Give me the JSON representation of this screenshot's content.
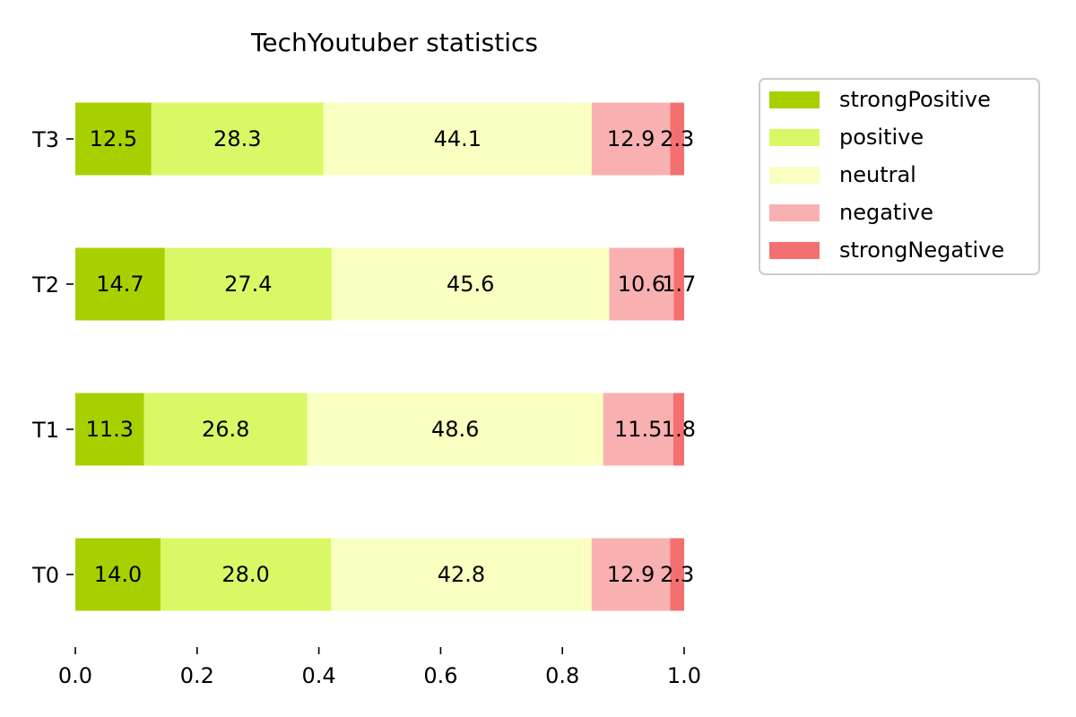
{
  "chart_data": {
    "type": "bar",
    "orientation": "horizontal",
    "stacked": true,
    "normalized": true,
    "title": "TechYoutuber statistics",
    "xlabel": "",
    "ylabel": "",
    "xlim": [
      0,
      1.0
    ],
    "x_ticks": [
      "0.0",
      "0.2",
      "0.4",
      "0.6",
      "0.8",
      "1.0"
    ],
    "categories": [
      "T0",
      "T1",
      "T2",
      "T3"
    ],
    "grid": false,
    "legend_position": "outside-top-right",
    "series": [
      {
        "name": "strongPositive",
        "color": "#a8d000",
        "values": [
          14.0,
          11.3,
          14.7,
          12.5
        ],
        "labels": [
          "14.0",
          "11.3",
          "14.7",
          "12.5"
        ]
      },
      {
        "name": "positive",
        "color": "#d9f865",
        "values": [
          28.0,
          26.8,
          27.4,
          28.3
        ],
        "labels": [
          "28.0",
          "26.8",
          "27.4",
          "28.3"
        ]
      },
      {
        "name": "neutral",
        "color": "#f8ffc0",
        "values": [
          42.8,
          48.6,
          45.6,
          44.1
        ],
        "labels": [
          "42.8",
          "48.6",
          "45.6",
          "44.1"
        ]
      },
      {
        "name": "negative",
        "color": "#f8b0b0",
        "values": [
          12.9,
          11.5,
          10.6,
          12.9
        ],
        "labels": [
          "12.9",
          "11.5",
          "10.6",
          "12.9"
        ]
      },
      {
        "name": "strongNegative",
        "color": "#f47070",
        "values": [
          2.3,
          1.8,
          1.7,
          2.3
        ],
        "labels": [
          "2.3",
          "1.8",
          "1.7",
          "2.3"
        ]
      }
    ]
  }
}
